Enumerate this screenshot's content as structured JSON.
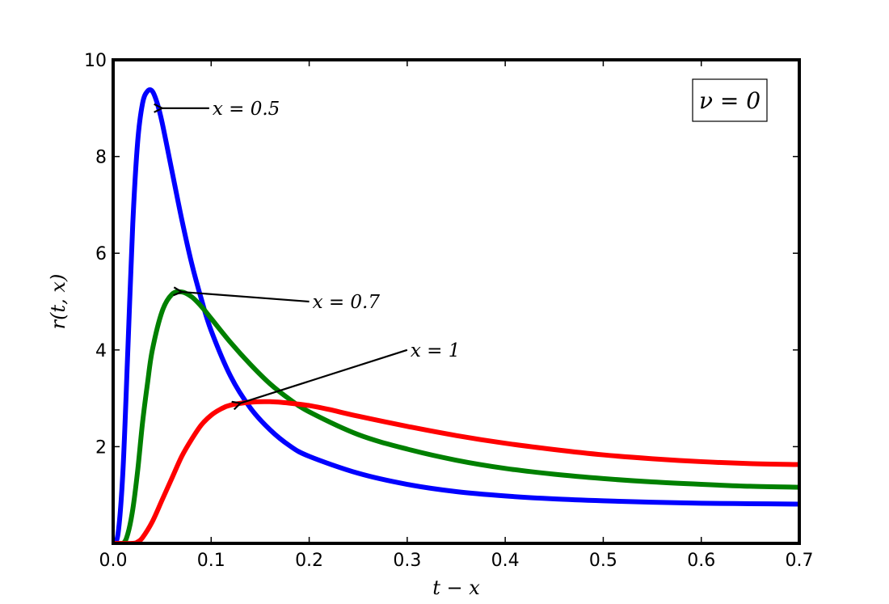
{
  "chart_data": {
    "type": "line",
    "xlabel": "t − x",
    "ylabel": "r(t, x)",
    "xlim": [
      0.0,
      0.7
    ],
    "ylim": [
      0.0,
      10.0
    ],
    "grid": false,
    "x_ticks": [
      0.0,
      0.1,
      0.2,
      0.3,
      0.4,
      0.5,
      0.6,
      0.7
    ],
    "x_tick_labels": [
      "0.0",
      "0.1",
      "0.2",
      "0.3",
      "0.4",
      "0.5",
      "0.6",
      "0.7"
    ],
    "y_ticks": [
      2,
      4,
      6,
      8,
      10
    ],
    "y_tick_labels": [
      "2",
      "4",
      "6",
      "8",
      "10"
    ],
    "legend_box": {
      "text": "ν = 0",
      "placement": "top-right"
    },
    "series": [
      {
        "color": "#0000ff",
        "x": [
          0.0,
          0.005,
          0.01,
          0.015,
          0.02,
          0.025,
          0.03,
          0.035,
          0.04,
          0.045,
          0.05,
          0.06,
          0.07,
          0.08,
          0.09,
          0.1,
          0.12,
          0.14,
          0.16,
          0.18,
          0.2,
          0.25,
          0.3,
          0.35,
          0.4,
          0.45,
          0.5,
          0.55,
          0.6,
          0.65,
          0.7
        ],
        "y": [
          0.0,
          0.2,
          1.5,
          4.0,
          6.6,
          8.3,
          9.1,
          9.35,
          9.35,
          9.1,
          8.7,
          7.7,
          6.7,
          5.8,
          5.05,
          4.4,
          3.45,
          2.8,
          2.35,
          2.02,
          1.8,
          1.45,
          1.22,
          1.07,
          0.98,
          0.92,
          0.88,
          0.85,
          0.83,
          0.82,
          0.81
        ]
      },
      {
        "color": "#008000",
        "x": [
          0.0,
          0.01,
          0.015,
          0.02,
          0.025,
          0.03,
          0.035,
          0.04,
          0.05,
          0.06,
          0.07,
          0.08,
          0.09,
          0.1,
          0.12,
          0.14,
          0.16,
          0.18,
          0.2,
          0.25,
          0.3,
          0.35,
          0.4,
          0.45,
          0.5,
          0.55,
          0.6,
          0.65,
          0.7
        ],
        "y": [
          0.0,
          0.0,
          0.2,
          0.7,
          1.5,
          2.5,
          3.3,
          4.0,
          4.8,
          5.15,
          5.2,
          5.1,
          4.9,
          4.65,
          4.15,
          3.7,
          3.3,
          2.98,
          2.72,
          2.25,
          1.95,
          1.72,
          1.55,
          1.43,
          1.34,
          1.27,
          1.22,
          1.18,
          1.16
        ]
      },
      {
        "color": "#ff0000",
        "x": [
          0.0,
          0.02,
          0.025,
          0.03,
          0.04,
          0.05,
          0.06,
          0.07,
          0.08,
          0.09,
          0.1,
          0.11,
          0.12,
          0.14,
          0.16,
          0.18,
          0.2,
          0.22,
          0.25,
          0.3,
          0.35,
          0.4,
          0.45,
          0.5,
          0.55,
          0.6,
          0.65,
          0.7
        ],
        "y": [
          0.0,
          0.0,
          0.03,
          0.12,
          0.45,
          0.9,
          1.35,
          1.8,
          2.15,
          2.45,
          2.65,
          2.78,
          2.86,
          2.92,
          2.93,
          2.9,
          2.85,
          2.77,
          2.63,
          2.42,
          2.23,
          2.07,
          1.94,
          1.83,
          1.75,
          1.69,
          1.65,
          1.63
        ]
      }
    ],
    "annotations": [
      {
        "text": "x = 0.5",
        "point_to": [
          0.05,
          9.0
        ],
        "label_at": [
          0.098,
          9.0
        ]
      },
      {
        "text": "x = 0.7",
        "point_to": [
          0.07,
          5.2
        ],
        "label_at": [
          0.2,
          5.0
        ]
      },
      {
        "text": "x = 1",
        "point_to": [
          0.13,
          2.9
        ],
        "label_at": [
          0.3,
          4.0
        ]
      }
    ]
  }
}
